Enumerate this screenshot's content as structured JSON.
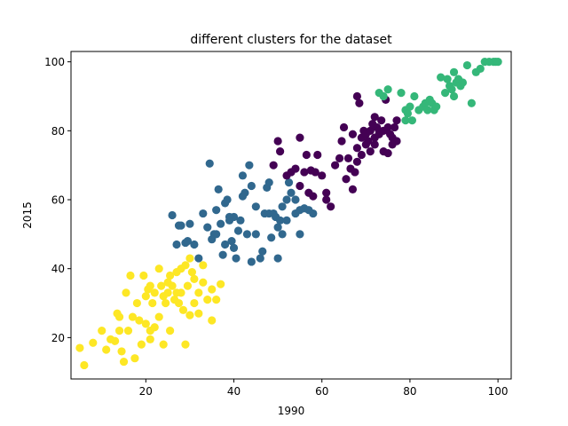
{
  "chart_data": {
    "type": "scatter",
    "title": "different clusters for the dataset",
    "xlabel": "1990",
    "ylabel": "2015",
    "xlim": [
      3,
      103
    ],
    "ylim": [
      8,
      103
    ],
    "x_ticks": [
      20,
      40,
      60,
      80,
      100
    ],
    "y_ticks": [
      20,
      40,
      60,
      80,
      100
    ],
    "grid": false,
    "legend": "none",
    "series": [
      {
        "color": "#fde725",
        "points": [
          [
            5,
            17
          ],
          [
            6,
            12
          ],
          [
            8,
            18.5
          ],
          [
            10,
            22
          ],
          [
            11,
            16.5
          ],
          [
            12,
            19.5
          ],
          [
            13,
            19
          ],
          [
            13.5,
            27
          ],
          [
            14,
            22
          ],
          [
            14,
            26
          ],
          [
            14.5,
            16
          ],
          [
            15,
            13
          ],
          [
            15.5,
            33
          ],
          [
            16,
            22
          ],
          [
            16.5,
            38
          ],
          [
            17,
            26
          ],
          [
            17.5,
            14
          ],
          [
            18,
            30
          ],
          [
            18.5,
            25
          ],
          [
            19,
            18
          ],
          [
            19.5,
            38
          ],
          [
            20,
            24
          ],
          [
            20,
            32
          ],
          [
            20.5,
            34
          ],
          [
            21,
            35
          ],
          [
            21,
            22
          ],
          [
            21.5,
            30
          ],
          [
            22,
            23
          ],
          [
            22,
            33
          ],
          [
            23,
            40
          ],
          [
            23,
            26
          ],
          [
            23.5,
            35
          ],
          [
            24,
            32
          ],
          [
            24,
            18
          ],
          [
            24.5,
            30
          ],
          [
            25,
            33
          ],
          [
            25.5,
            22
          ],
          [
            25.5,
            38
          ],
          [
            26,
            35
          ],
          [
            26.5,
            31
          ],
          [
            27,
            39
          ],
          [
            27.5,
            30
          ],
          [
            28,
            40
          ],
          [
            28,
            33
          ],
          [
            28.5,
            28
          ],
          [
            29,
            41
          ],
          [
            29,
            18
          ],
          [
            29.5,
            35
          ],
          [
            30,
            43
          ],
          [
            30,
            26.5
          ],
          [
            30.5,
            39
          ],
          [
            31,
            37
          ],
          [
            31,
            30
          ],
          [
            32,
            33
          ],
          [
            32,
            27
          ],
          [
            33,
            41
          ],
          [
            33,
            36
          ],
          [
            34,
            31
          ],
          [
            35,
            25
          ],
          [
            35,
            34
          ],
          [
            36,
            31
          ],
          [
            37,
            35.5
          ],
          [
            21,
            19.5
          ],
          [
            25,
            36
          ],
          [
            27,
            33
          ]
        ]
      },
      {
        "color": "#31688e",
        "points": [
          [
            26,
            55.5
          ],
          [
            27,
            47
          ],
          [
            27.5,
            52.5
          ],
          [
            28,
            52.5
          ],
          [
            29,
            47.5
          ],
          [
            29.5,
            48
          ],
          [
            30,
            53
          ],
          [
            31,
            47
          ],
          [
            32,
            43
          ],
          [
            33,
            56
          ],
          [
            34,
            52
          ],
          [
            34.5,
            70.5
          ],
          [
            35,
            48.5
          ],
          [
            35.5,
            50
          ],
          [
            36,
            57
          ],
          [
            36.5,
            63
          ],
          [
            37,
            53
          ],
          [
            37.5,
            44
          ],
          [
            38,
            59
          ],
          [
            38,
            47
          ],
          [
            38.5,
            60
          ],
          [
            39,
            54
          ],
          [
            39.5,
            48
          ],
          [
            40,
            55
          ],
          [
            40,
            46
          ],
          [
            40.5,
            43
          ],
          [
            41,
            51
          ],
          [
            41.5,
            54
          ],
          [
            42,
            67
          ],
          [
            42.5,
            62
          ],
          [
            43,
            50
          ],
          [
            43.5,
            70
          ],
          [
            44,
            64
          ],
          [
            44,
            42
          ],
          [
            45,
            50
          ],
          [
            45,
            58
          ],
          [
            46,
            43
          ],
          [
            46.5,
            45
          ],
          [
            47,
            56
          ],
          [
            47.5,
            63.5
          ],
          [
            48,
            65
          ],
          [
            48,
            56
          ],
          [
            48.5,
            49
          ],
          [
            49,
            56
          ],
          [
            49.5,
            55
          ],
          [
            50,
            43
          ],
          [
            50,
            52
          ],
          [
            50.5,
            54
          ],
          [
            51,
            50
          ],
          [
            51,
            58
          ],
          [
            52,
            60
          ],
          [
            52,
            54
          ],
          [
            52.5,
            65
          ],
          [
            53,
            62
          ],
          [
            54,
            60
          ],
          [
            54,
            56
          ],
          [
            55,
            50
          ],
          [
            55,
            57
          ],
          [
            56,
            57.5
          ],
          [
            57,
            57
          ],
          [
            58,
            56
          ],
          [
            42,
            61
          ],
          [
            36,
            50
          ],
          [
            39,
            55
          ]
        ]
      },
      {
        "color": "#440154",
        "points": [
          [
            49,
            70
          ],
          [
            50,
            77
          ],
          [
            50.5,
            74
          ],
          [
            52,
            67
          ],
          [
            53,
            68
          ],
          [
            54,
            69
          ],
          [
            55,
            64
          ],
          [
            55,
            78
          ],
          [
            56,
            68
          ],
          [
            56.5,
            73
          ],
          [
            57,
            62
          ],
          [
            57.5,
            68.5
          ],
          [
            58,
            61
          ],
          [
            58.5,
            68
          ],
          [
            59,
            73
          ],
          [
            60,
            67
          ],
          [
            61,
            62
          ],
          [
            61,
            60
          ],
          [
            62,
            58
          ],
          [
            63,
            70
          ],
          [
            64,
            72
          ],
          [
            64.5,
            77
          ],
          [
            65,
            81
          ],
          [
            65.5,
            66
          ],
          [
            66,
            72
          ],
          [
            66.5,
            69
          ],
          [
            67,
            63
          ],
          [
            67.5,
            68
          ],
          [
            68,
            75
          ],
          [
            68,
            90
          ],
          [
            68.5,
            88
          ],
          [
            69,
            78
          ],
          [
            69,
            73
          ],
          [
            69.5,
            80
          ],
          [
            70,
            76
          ],
          [
            70,
            79
          ],
          [
            70.5,
            77
          ],
          [
            71,
            80
          ],
          [
            71,
            74
          ],
          [
            71.5,
            82
          ],
          [
            72,
            78
          ],
          [
            72,
            76
          ],
          [
            72.5,
            81
          ],
          [
            73,
            80
          ],
          [
            73,
            79
          ],
          [
            73.5,
            83
          ],
          [
            74,
            74
          ],
          [
            74,
            80
          ],
          [
            74.5,
            89
          ],
          [
            75,
            73.5
          ],
          [
            75,
            81
          ],
          [
            75.5,
            79
          ],
          [
            76,
            78
          ],
          [
            76.5,
            81
          ],
          [
            77,
            83
          ],
          [
            77,
            77
          ],
          [
            67,
            79
          ],
          [
            68,
            71
          ],
          [
            72,
            84
          ],
          [
            76,
            76
          ]
        ]
      },
      {
        "color": "#35b779",
        "points": [
          [
            73,
            91
          ],
          [
            74,
            90
          ],
          [
            75,
            92
          ],
          [
            78,
            91
          ],
          [
            79,
            83
          ],
          [
            79,
            86
          ],
          [
            79.5,
            85
          ],
          [
            80,
            87
          ],
          [
            80.5,
            83
          ],
          [
            81,
            90
          ],
          [
            82,
            86
          ],
          [
            83,
            87
          ],
          [
            83.5,
            88
          ],
          [
            84,
            86
          ],
          [
            84.5,
            89
          ],
          [
            85,
            88
          ],
          [
            85.5,
            86
          ],
          [
            86,
            87
          ],
          [
            87,
            95.5
          ],
          [
            88,
            91
          ],
          [
            88.5,
            95
          ],
          [
            89,
            93
          ],
          [
            89.5,
            92
          ],
          [
            90,
            97
          ],
          [
            90,
            90
          ],
          [
            90.5,
            94
          ],
          [
            91,
            95
          ],
          [
            91.5,
            93
          ],
          [
            92,
            94
          ],
          [
            93,
            99
          ],
          [
            94,
            88
          ],
          [
            95,
            97
          ],
          [
            96,
            98
          ],
          [
            97,
            100
          ],
          [
            98,
            100
          ],
          [
            99,
            100
          ],
          [
            99.5,
            100
          ],
          [
            100,
            100
          ]
        ]
      }
    ]
  }
}
